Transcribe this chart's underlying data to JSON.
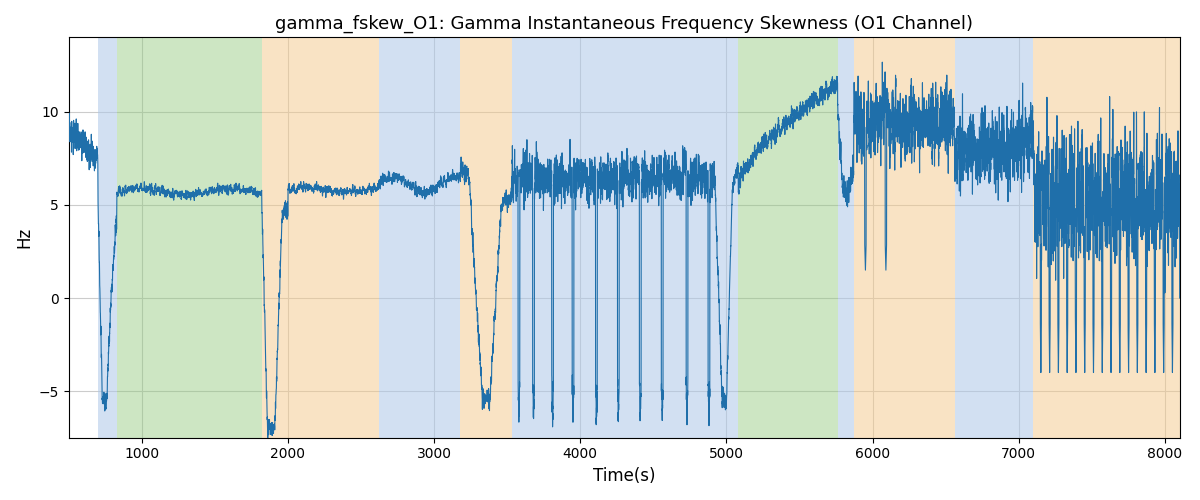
{
  "title": "gamma_fskew_O1: Gamma Instantaneous Frequency Skewness (O1 Channel)",
  "xlabel": "Time(s)",
  "ylabel": "Hz",
  "xlim": [
    500,
    8100
  ],
  "ylim": [
    -7.5,
    14
  ],
  "figsize": [
    12,
    5
  ],
  "dpi": 100,
  "line_color": "#1f6faa",
  "line_width": 0.8,
  "background_bands": [
    {
      "xmin": 700,
      "xmax": 830,
      "color": "#adc8e8",
      "alpha": 0.55
    },
    {
      "xmin": 830,
      "xmax": 1820,
      "color": "#90c87a",
      "alpha": 0.45
    },
    {
      "xmin": 1820,
      "xmax": 2620,
      "color": "#f5c98a",
      "alpha": 0.5
    },
    {
      "xmin": 2620,
      "xmax": 3180,
      "color": "#adc8e8",
      "alpha": 0.55
    },
    {
      "xmin": 3180,
      "xmax": 3530,
      "color": "#f5c98a",
      "alpha": 0.5
    },
    {
      "xmin": 3530,
      "xmax": 4920,
      "color": "#adc8e8",
      "alpha": 0.55
    },
    {
      "xmin": 4920,
      "xmax": 5080,
      "color": "#adc8e8",
      "alpha": 0.55
    },
    {
      "xmin": 5080,
      "xmax": 5760,
      "color": "#90c87a",
      "alpha": 0.45
    },
    {
      "xmin": 5760,
      "xmax": 5870,
      "color": "#adc8e8",
      "alpha": 0.55
    },
    {
      "xmin": 5870,
      "xmax": 6560,
      "color": "#f5c98a",
      "alpha": 0.5
    },
    {
      "xmin": 6560,
      "xmax": 6720,
      "color": "#adc8e8",
      "alpha": 0.55
    },
    {
      "xmin": 6720,
      "xmax": 7100,
      "color": "#adc8e8",
      "alpha": 0.55
    },
    {
      "xmin": 7100,
      "xmax": 8100,
      "color": "#f5c98a",
      "alpha": 0.5
    }
  ],
  "grid_color": "#cccccc",
  "grid_linewidth": 0.8,
  "yticks": [
    -5,
    0,
    5,
    10
  ],
  "xticks": [
    1000,
    2000,
    3000,
    4000,
    5000,
    6000,
    7000,
    8000
  ],
  "seed": 17
}
